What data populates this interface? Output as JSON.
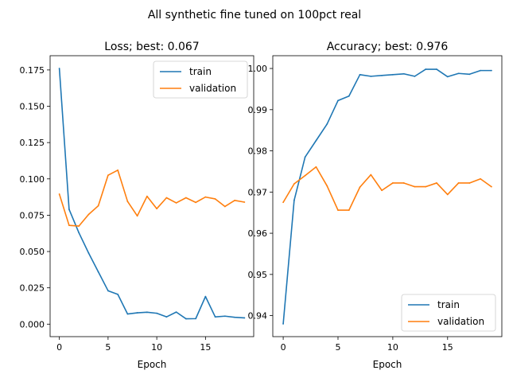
{
  "figure": {
    "suptitle": "All synthetic fine tuned on 100pct real"
  },
  "colors": {
    "train": "#1f77b4",
    "validation": "#ff7f0e"
  },
  "chart_data": [
    {
      "type": "line",
      "title": "Loss; best: 0.067",
      "xlabel": "Epoch",
      "ylabel": "",
      "xlim": [
        -0.95,
        19.95
      ],
      "ylim": [
        -0.0086,
        0.1848
      ],
      "xticks": [
        0,
        5,
        10,
        15
      ],
      "xtick_labels": [
        "0",
        "5",
        "10",
        "15"
      ],
      "yticks": [
        0.0,
        0.025,
        0.05,
        0.075,
        0.1,
        0.125,
        0.15,
        0.175
      ],
      "ytick_labels": [
        "0.000",
        "0.025",
        "0.050",
        "0.075",
        "0.100",
        "0.125",
        "0.150",
        "0.175"
      ],
      "legend": {
        "placement": "top-right",
        "entries": [
          "train",
          "validation"
        ]
      },
      "grid": false,
      "x": [
        0,
        1,
        2,
        3,
        4,
        5,
        6,
        7,
        8,
        9,
        10,
        11,
        12,
        13,
        14,
        15,
        16,
        17,
        18,
        19
      ],
      "series": [
        {
          "name": "train",
          "color": "#1f77b4",
          "values": [
            0.176,
            0.079,
            0.063,
            0.049,
            0.036,
            0.023,
            0.0205,
            0.007,
            0.0078,
            0.0082,
            0.0075,
            0.005,
            0.0083,
            0.0037,
            0.0038,
            0.019,
            0.005,
            0.0055,
            0.0047,
            0.0043
          ]
        },
        {
          "name": "validation",
          "color": "#ff7f0e",
          "values": [
            0.0895,
            0.068,
            0.0675,
            0.0755,
            0.0815,
            0.1025,
            0.106,
            0.0845,
            0.0745,
            0.088,
            0.0795,
            0.087,
            0.0835,
            0.087,
            0.0838,
            0.0875,
            0.0862,
            0.081,
            0.0852,
            0.084
          ]
        }
      ]
    },
    {
      "type": "line",
      "title": "Accuracy; best: 0.976",
      "xlabel": "Epoch",
      "ylabel": "",
      "xlim": [
        -0.95,
        19.95
      ],
      "ylim": [
        0.9349,
        1.0031
      ],
      "xticks": [
        0,
        5,
        10,
        15
      ],
      "xtick_labels": [
        "0",
        "5",
        "10",
        "15"
      ],
      "yticks": [
        0.94,
        0.95,
        0.96,
        0.97,
        0.98,
        0.99,
        1.0
      ],
      "ytick_labels": [
        "0.94",
        "0.95",
        "0.96",
        "0.97",
        "0.98",
        "0.99",
        "1.00"
      ],
      "legend": {
        "placement": "bottom-right",
        "entries": [
          "train",
          "validation"
        ]
      },
      "grid": false,
      "x": [
        0,
        1,
        2,
        3,
        4,
        5,
        6,
        7,
        8,
        9,
        10,
        11,
        12,
        13,
        14,
        15,
        16,
        17,
        18,
        19
      ],
      "series": [
        {
          "name": "train",
          "color": "#1f77b4",
          "values": [
            0.938,
            0.968,
            0.9785,
            0.9825,
            0.9865,
            0.9922,
            0.9933,
            0.9985,
            0.9981,
            0.9983,
            0.9985,
            0.9987,
            0.9981,
            0.9998,
            0.9998,
            0.998,
            0.9988,
            0.9986,
            0.9995,
            0.9995
          ]
        },
        {
          "name": "validation",
          "color": "#ff7f0e",
          "values": [
            0.9675,
            0.972,
            0.974,
            0.9761,
            0.9715,
            0.9656,
            0.9656,
            0.9712,
            0.9742,
            0.9704,
            0.9722,
            0.9722,
            0.9713,
            0.9713,
            0.9722,
            0.9694,
            0.9722,
            0.9722,
            0.9732,
            0.9713
          ]
        }
      ]
    }
  ]
}
